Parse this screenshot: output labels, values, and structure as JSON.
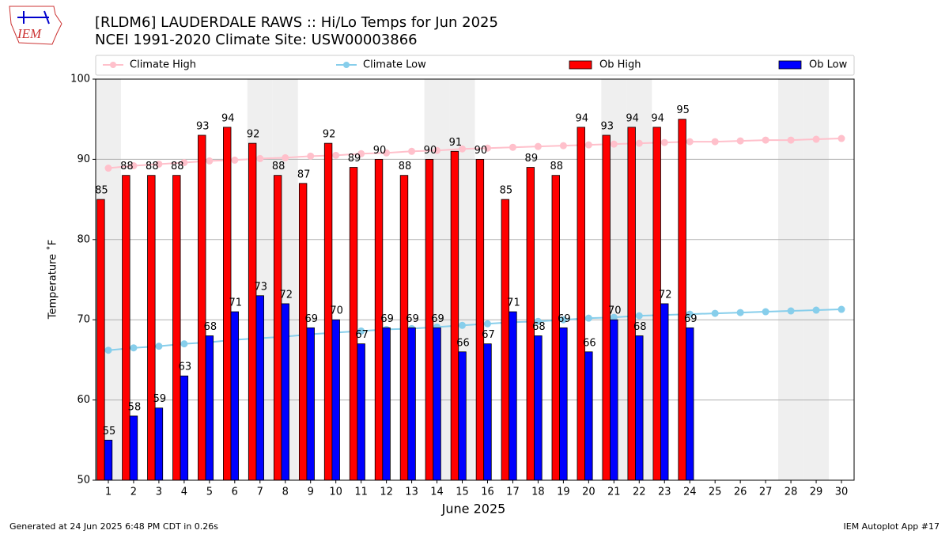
{
  "header": {
    "logo": "IEM"
  },
  "chart_data": {
    "type": "bar",
    "title": "[RLDM6] LAUDERDALE RAWS :: Hi/Lo Temps for Jun 2025",
    "subtitle": "NCEI 1991-2020 Climate Site: USW00003866",
    "x_label": "June 2025",
    "y_label": "Temperature ˚F",
    "x": [
      1,
      2,
      3,
      4,
      5,
      6,
      7,
      8,
      9,
      10,
      11,
      12,
      13,
      14,
      15,
      16,
      17,
      18,
      19,
      20,
      21,
      22,
      23,
      24,
      25,
      26,
      27,
      28,
      29,
      30
    ],
    "xlim": [
      0.5,
      30.5
    ],
    "xticks": [
      1,
      2,
      3,
      4,
      5,
      6,
      7,
      8,
      9,
      10,
      11,
      12,
      13,
      14,
      15,
      16,
      17,
      18,
      19,
      20,
      21,
      22,
      23,
      24,
      25,
      26,
      27,
      28,
      29,
      30
    ],
    "ylim": [
      50,
      100
    ],
    "yticks": [
      50,
      60,
      70,
      80,
      90,
      100
    ],
    "grid": true,
    "shaded_days": [
      1,
      7,
      8,
      14,
      15,
      21,
      22,
      28,
      29
    ],
    "series": [
      {
        "name": "Climate High",
        "type": "line",
        "color": "#ffc0cb",
        "values": [
          88.9,
          89.2,
          89.4,
          89.6,
          89.8,
          89.9,
          90.1,
          90.2,
          90.4,
          90.5,
          90.7,
          90.8,
          91.0,
          91.1,
          91.3,
          91.4,
          91.5,
          91.6,
          91.7,
          91.8,
          91.9,
          92.0,
          92.1,
          92.2,
          92.2,
          92.3,
          92.4,
          92.4,
          92.5,
          92.6
        ]
      },
      {
        "name": "Climate Low",
        "type": "line",
        "color": "#87ceeb",
        "values": [
          66.2,
          66.5,
          66.7,
          67.0,
          67.2,
          67.5,
          67.7,
          67.9,
          68.2,
          68.4,
          68.6,
          68.8,
          68.9,
          69.1,
          69.3,
          69.5,
          69.7,
          69.8,
          70.0,
          70.2,
          70.3,
          70.5,
          70.6,
          70.7,
          70.8,
          70.9,
          71.0,
          71.1,
          71.2,
          71.3
        ]
      },
      {
        "name": "Ob High",
        "type": "bar",
        "color": "#ff0000",
        "values": [
          85,
          88,
          88,
          88,
          93,
          94,
          92,
          88,
          87,
          92,
          89,
          90,
          88,
          90,
          91,
          90,
          85,
          89,
          88,
          94,
          93,
          94,
          94,
          95,
          null,
          null,
          null,
          null,
          null,
          null
        ]
      },
      {
        "name": "Ob Low",
        "type": "bar",
        "color": "#0000ff",
        "values": [
          55,
          58,
          59,
          63,
          68,
          71,
          73,
          72,
          69,
          70,
          67,
          69,
          69,
          69,
          66,
          67,
          71,
          68,
          69,
          66,
          70,
          68,
          72,
          69,
          null,
          null,
          null,
          null,
          null,
          null
        ]
      }
    ]
  },
  "footer": {
    "left": "Generated at 24 Jun 2025 6:48 PM CDT in 0.26s",
    "right": "IEM Autoplot App #17"
  }
}
